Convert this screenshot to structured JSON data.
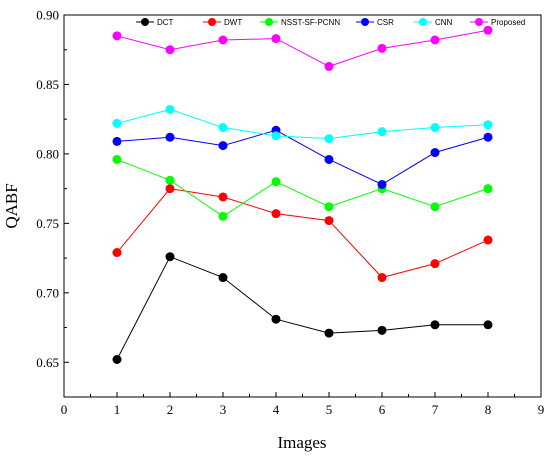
{
  "chart_data": {
    "type": "line",
    "title": "",
    "xlabel": "Images",
    "ylabel": "QABF",
    "xlim": [
      0,
      9
    ],
    "ylim": [
      0.625,
      0.9
    ],
    "x_ticks": [
      0,
      1,
      2,
      3,
      4,
      5,
      6,
      7,
      8,
      9
    ],
    "y_ticks": [
      0.65,
      0.7,
      0.75,
      0.8,
      0.85,
      0.9
    ],
    "x_tick_labels": [
      "0",
      "1",
      "2",
      "3",
      "4",
      "5",
      "6",
      "7",
      "8",
      "9"
    ],
    "y_tick_labels": [
      "0.65",
      "0.70",
      "0.75",
      "0.80",
      "0.85",
      "0.90"
    ],
    "grid": false,
    "legend_position": "top",
    "x": [
      1,
      2,
      3,
      4,
      5,
      6,
      7,
      8
    ],
    "series": [
      {
        "name": "DCT",
        "color": "#000000",
        "values": [
          0.652,
          0.726,
          0.711,
          0.681,
          0.671,
          0.673,
          0.677,
          0.677
        ]
      },
      {
        "name": "DWT",
        "color": "#ff0000",
        "values": [
          0.729,
          0.775,
          0.769,
          0.757,
          0.752,
          0.711,
          0.721,
          0.738
        ]
      },
      {
        "name": "NSST-SF-PCNN",
        "color": "#00ff00",
        "values": [
          0.796,
          0.781,
          0.755,
          0.78,
          0.762,
          0.775,
          0.762,
          0.775
        ]
      },
      {
        "name": "CSR",
        "color": "#0000ff",
        "values": [
          0.809,
          0.812,
          0.806,
          0.817,
          0.796,
          0.778,
          0.801,
          0.812
        ]
      },
      {
        "name": "CNN",
        "color": "#00ffff",
        "values": [
          0.822,
          0.832,
          0.819,
          0.813,
          0.811,
          0.816,
          0.819,
          0.821
        ]
      },
      {
        "name": "Proposed",
        "color": "#ff00ff",
        "values": [
          0.885,
          0.875,
          0.882,
          0.883,
          0.863,
          0.876,
          0.882,
          0.889
        ]
      }
    ]
  }
}
